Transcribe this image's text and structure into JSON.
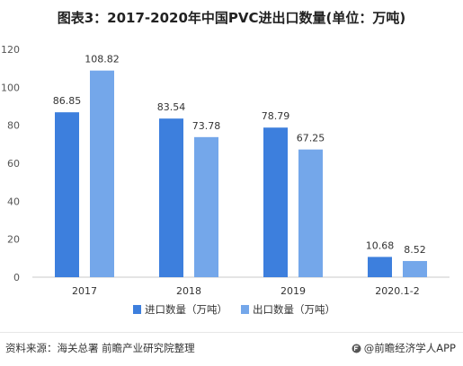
{
  "title": "图表3：2017-2020年中国PVC进出口数量(单位：万吨)",
  "source": "资料来源：海关总署 前瞻产业研究院整理",
  "brand": "@前瞻经济学人APP",
  "colors": {
    "import": "#3d7fdd",
    "export": "#74a7ea",
    "axis": "#c8c8c8"
  },
  "chart_data": {
    "type": "bar",
    "categories": [
      "2017",
      "2018",
      "2019",
      "2020.1-2"
    ],
    "series": [
      {
        "name": "进口数量（万吨）",
        "values": [
          86.85,
          83.54,
          78.79,
          10.68
        ]
      },
      {
        "name": "出口数量（万吨）",
        "values": [
          108.82,
          73.78,
          67.25,
          8.52
        ]
      }
    ],
    "ylim": [
      0,
      120
    ],
    "yticks": [
      0,
      20,
      40,
      60,
      80,
      100,
      120
    ],
    "grid": false,
    "legend_position": "bottom"
  }
}
